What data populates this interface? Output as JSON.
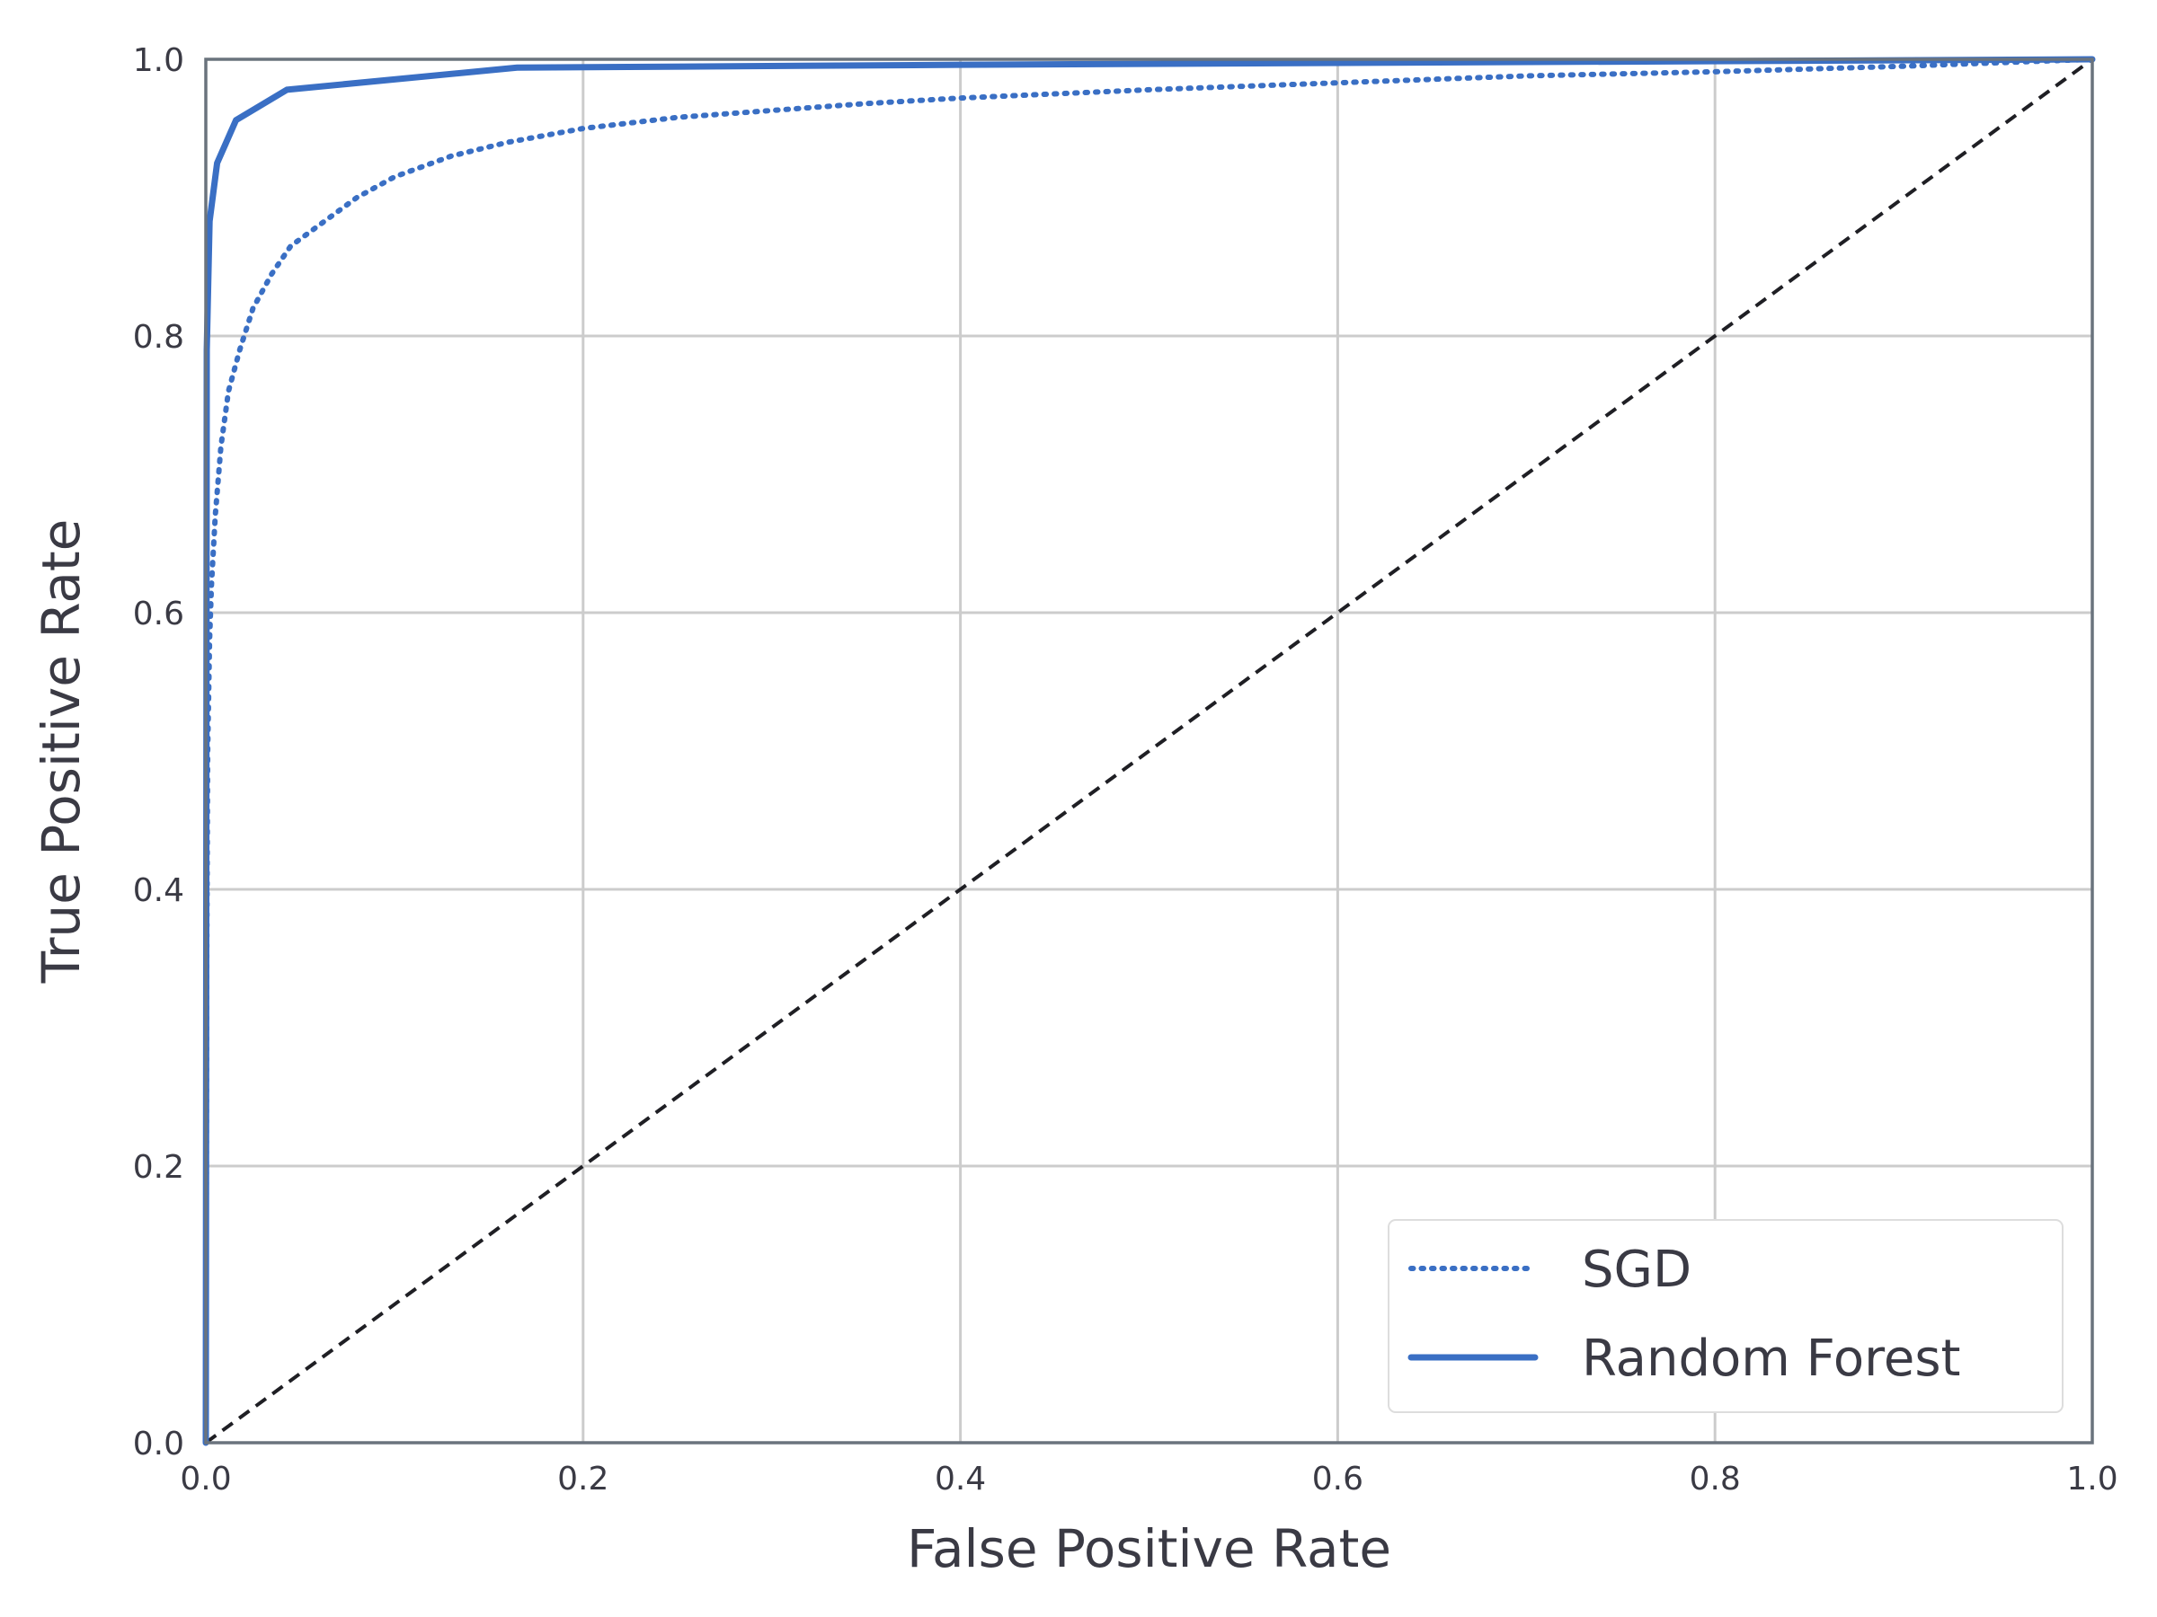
{
  "chart_data": {
    "type": "line",
    "xlabel": "False Positive Rate",
    "ylabel": "True Positive Rate",
    "xlim": [
      0.0,
      1.0
    ],
    "ylim": [
      0.0,
      1.0
    ],
    "grid": true,
    "legend_position": "bottom-right",
    "x_ticks": [
      "0.0",
      "0.2",
      "0.4",
      "0.6",
      "0.8",
      "1.0"
    ],
    "y_ticks": [
      "0.0",
      "0.2",
      "0.4",
      "0.6",
      "0.8",
      "1.0"
    ],
    "series": [
      {
        "name": "SGD",
        "style": "dotted",
        "color": "#3a6fc4",
        "x": [
          0.0,
          0.0005,
          0.001,
          0.002,
          0.003,
          0.005,
          0.008,
          0.012,
          0.018,
          0.025,
          0.035,
          0.045,
          0.06,
          0.08,
          0.1,
          0.13,
          0.16,
          0.2,
          0.25,
          0.3,
          0.35,
          0.4,
          0.5,
          0.6,
          0.7,
          0.8,
          0.9,
          1.0
        ],
        "y": [
          0.0,
          0.35,
          0.5,
          0.58,
          0.62,
          0.67,
          0.72,
          0.76,
          0.79,
          0.82,
          0.845,
          0.865,
          0.88,
          0.9,
          0.915,
          0.93,
          0.94,
          0.95,
          0.958,
          0.963,
          0.968,
          0.972,
          0.978,
          0.983,
          0.988,
          0.991,
          0.995,
          1.0
        ]
      },
      {
        "name": "Random Forest",
        "style": "solid",
        "color": "#3a6fc4",
        "x": [
          0.0,
          0.0005,
          0.002,
          0.006,
          0.016,
          0.043,
          0.165,
          0.4,
          1.0
        ],
        "y": [
          0.0,
          0.79,
          0.883,
          0.925,
          0.956,
          0.978,
          0.994,
          0.996,
          1.0
        ]
      },
      {
        "name": "",
        "style": "dashed",
        "color": "#1f1f24",
        "x": [
          0.0,
          1.0
        ],
        "y": [
          0.0,
          1.0
        ]
      }
    ],
    "legend": [
      "SGD",
      "Random Forest"
    ]
  }
}
